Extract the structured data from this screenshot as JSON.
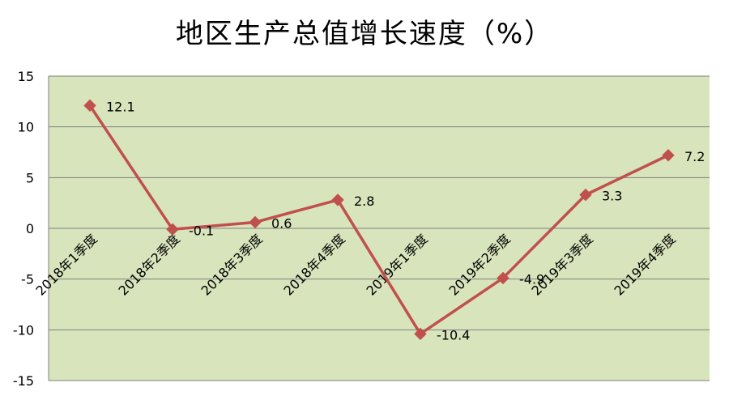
{
  "chart_data": {
    "type": "line",
    "title": "地区生产总值增长速度（%）",
    "categories": [
      "2018年1季度",
      "2018年2季度",
      "2018年3季度",
      "2018年4季度",
      "2019年1季度",
      "2019年2季度",
      "2019年3季度",
      "2019年4季度"
    ],
    "series": [
      {
        "values": [
          12.1,
          -0.1,
          0.6,
          2.8,
          -10.4,
          -4.9,
          3.3,
          7.2
        ]
      }
    ],
    "data_labels": [
      "12.1",
      "-0.1",
      "0.6",
      "2.8",
      "-10.4",
      "-4.9",
      "3.3",
      "7.2"
    ],
    "ylim": [
      -15,
      15
    ],
    "yticks": [
      15,
      10,
      5,
      0,
      -5,
      -10,
      -15
    ],
    "grid": true,
    "colors": {
      "plot_bg": "#D8E4BC",
      "line": "#C0504D",
      "grid": "#7F7F7F"
    }
  }
}
